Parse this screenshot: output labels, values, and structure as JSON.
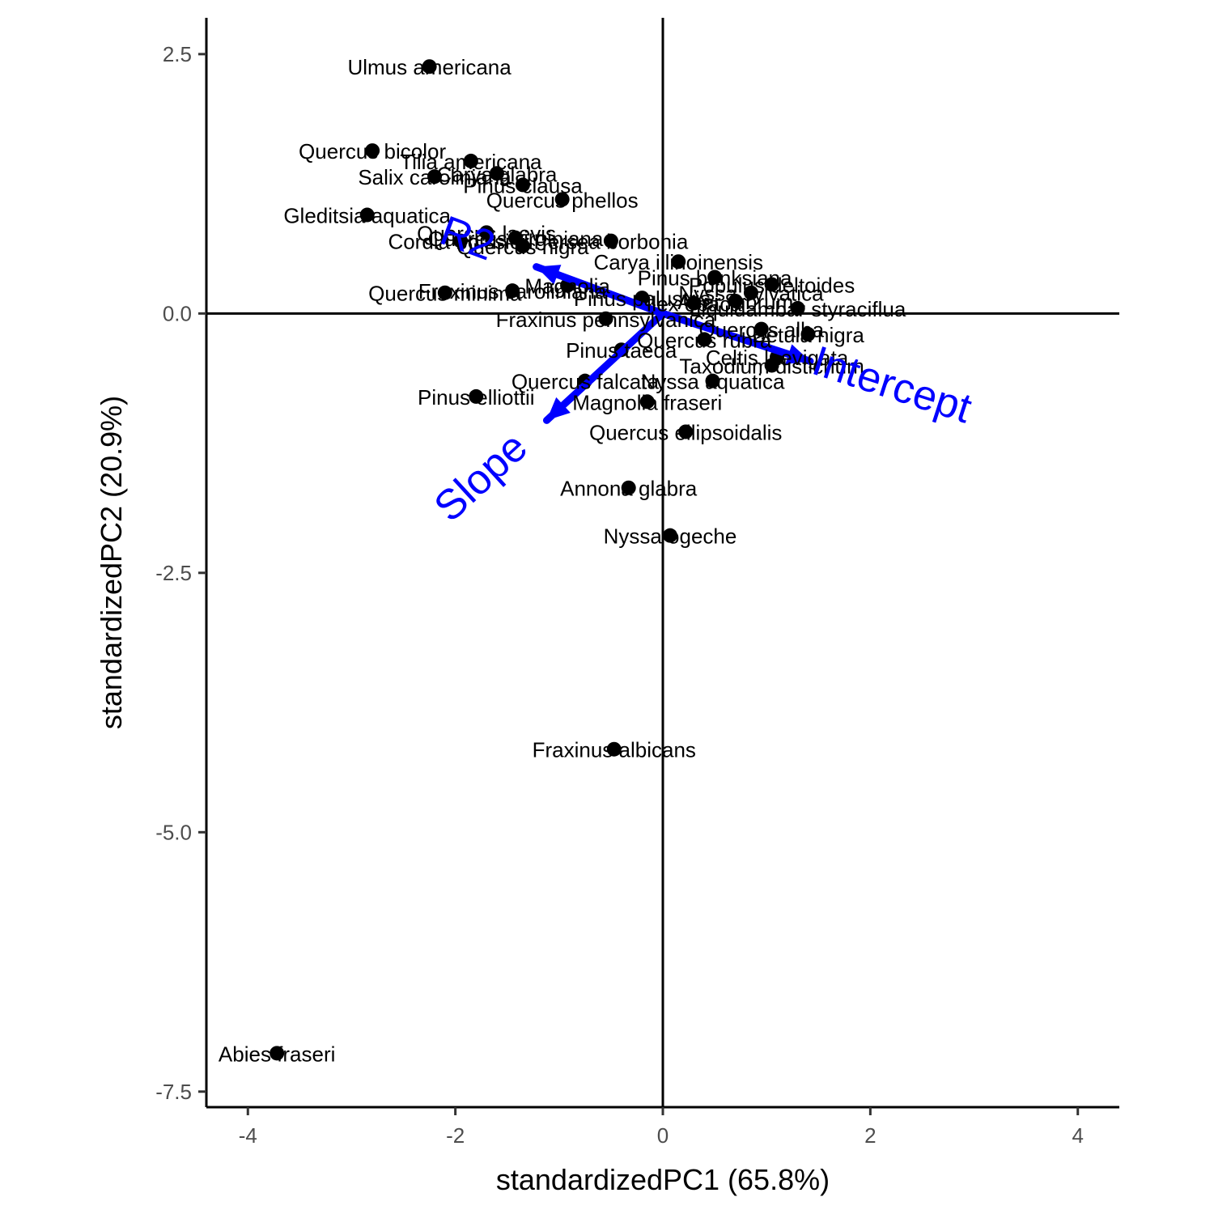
{
  "chart_data": {
    "type": "scatter",
    "title": "",
    "xlabel": "standardizedPC1 (65.8%)",
    "ylabel": "standardizedPC2 (20.9%)",
    "xlim": [
      -4.4,
      4.4
    ],
    "ylim": [
      -7.65,
      2.85
    ],
    "x_ticks": [
      -4,
      -2,
      0,
      2,
      4
    ],
    "y_ticks": [
      -7.5,
      -5.0,
      -2.5,
      0.0,
      2.5
    ],
    "x_tick_labels": [
      "-4",
      "-2",
      "0",
      "2",
      "4"
    ],
    "y_tick_labels": [
      "-7.5",
      "-5.0",
      "-2.5",
      "0.0",
      "2.5"
    ],
    "reference_lines": {
      "x": 0,
      "y": 0
    },
    "grid": false,
    "point_color": "#000000",
    "vector_color": "#0000ff",
    "points": [
      {
        "label": "Ulmus americana",
        "x": -2.25,
        "y": 2.38
      },
      {
        "label": "Quercus bicolor",
        "x": -2.8,
        "y": 1.57
      },
      {
        "label": "Tilia americana",
        "x": -1.85,
        "y": 1.47
      },
      {
        "label": "Salix caroliniana",
        "x": -2.2,
        "y": 1.32
      },
      {
        "label": "Carya glabra",
        "x": -1.6,
        "y": 1.35
      },
      {
        "label": "Pinus clausa",
        "x": -1.35,
        "y": 1.24
      },
      {
        "label": "Quercus phellos",
        "x": -0.97,
        "y": 1.1
      },
      {
        "label": "Gleditsia aquatica",
        "x": -2.85,
        "y": 0.95
      },
      {
        "label": "Quercus laevis",
        "x": -1.7,
        "y": 0.78
      },
      {
        "label": "Quercus virginiana",
        "x": -1.42,
        "y": 0.73
      },
      {
        "label": "Cordia boissieri",
        "x": -1.95,
        "y": 0.7
      },
      {
        "label": "Quercus nigra",
        "x": -1.35,
        "y": 0.65
      },
      {
        "label": "Persea borbonia",
        "x": -0.5,
        "y": 0.7
      },
      {
        "label": "Quercus minima",
        "x": -2.1,
        "y": 0.2
      },
      {
        "label": "Fraxinus caroliniana",
        "x": -1.45,
        "y": 0.22
      },
      {
        "label": "Magnolia",
        "x": -0.92,
        "y": 0.27
      },
      {
        "label": "Pinus elliottii",
        "x": -1.8,
        "y": -0.8
      },
      {
        "label": "Magnolia fraseri",
        "x": -0.15,
        "y": -0.85
      },
      {
        "label": "Quercus ellipsoidalis",
        "x": 0.22,
        "y": -1.14
      },
      {
        "label": "Quercus falcata",
        "x": -0.75,
        "y": -0.65
      },
      {
        "label": "Nyssa aquatica",
        "x": 0.48,
        "y": -0.65
      },
      {
        "label": "Annona glabra",
        "x": -0.33,
        "y": -1.68
      },
      {
        "label": "Nyssa ogeche",
        "x": 0.07,
        "y": -2.14
      },
      {
        "label": "Fraxinus albicans",
        "x": -0.47,
        "y": -4.2
      },
      {
        "label": "Abies fraseri",
        "x": -3.72,
        "y": -7.13
      },
      {
        "label": "Populus deltoides",
        "x": 1.05,
        "y": 0.28
      },
      {
        "label": "Pinus banksiana",
        "x": 0.5,
        "y": 0.35
      },
      {
        "label": "Carya illinoinensis",
        "x": 0.15,
        "y": 0.5
      },
      {
        "label": "Acer rubrum",
        "x": 0.7,
        "y": 0.12
      },
      {
        "label": "Liquidambar styraciflua",
        "x": 1.3,
        "y": 0.05
      },
      {
        "label": "Quercus alba",
        "x": 0.95,
        "y": -0.15
      },
      {
        "label": "Betula nigra",
        "x": 1.4,
        "y": -0.2
      },
      {
        "label": "Celtis laevigata",
        "x": 1.1,
        "y": -0.42
      },
      {
        "label": "Taxodium distichum",
        "x": 1.05,
        "y": -0.5
      },
      {
        "label": "Pinus taeda",
        "x": -0.4,
        "y": -0.35
      },
      {
        "label": "Quercus rubra",
        "x": 0.4,
        "y": -0.25
      },
      {
        "label": "Fraxinus pennsylvanica",
        "x": -0.55,
        "y": -0.05
      },
      {
        "label": "Ilex opaca",
        "x": 0.3,
        "y": 0.1
      },
      {
        "label": "Nyssa sylvatica",
        "x": 0.85,
        "y": 0.2
      },
      {
        "label": "Pinus palustris",
        "x": -0.2,
        "y": 0.15
      }
    ],
    "vectors": [
      {
        "label": "Intercept",
        "x": 1.42,
        "y": -0.46
      },
      {
        "label": "Slope",
        "x": -1.12,
        "y": -1.03
      },
      {
        "label": "R2",
        "x": -1.22,
        "y": 0.45
      }
    ]
  }
}
